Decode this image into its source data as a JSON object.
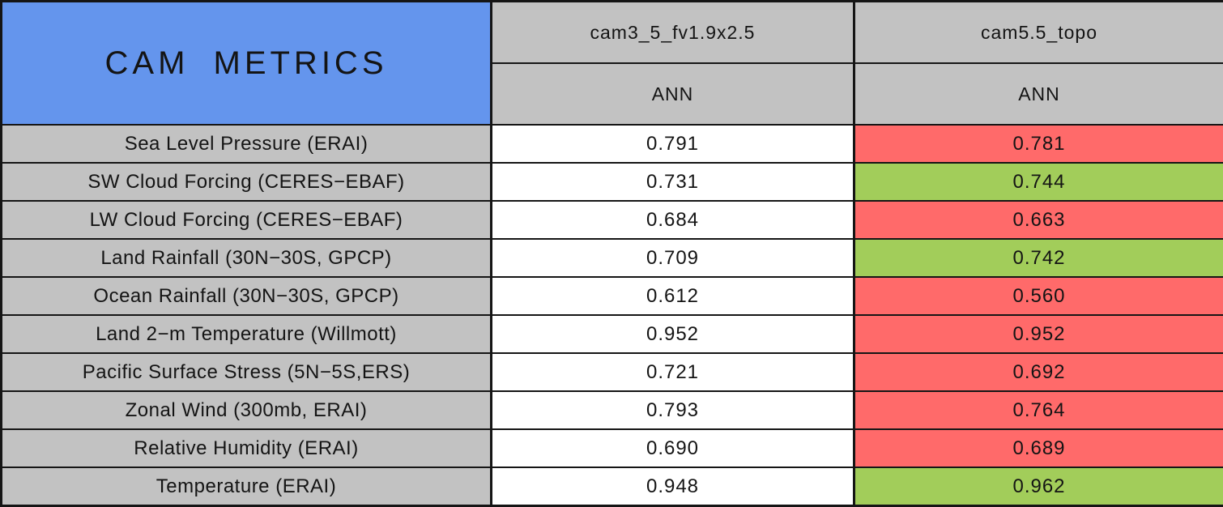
{
  "chart_data": {
    "type": "table",
    "title": "CAM METRICS",
    "column_groups": [
      {
        "model": "cam3_5_fv1.9x2.5",
        "subheader": "ANN"
      },
      {
        "model": "cam5.5_topo",
        "subheader": "ANN"
      }
    ],
    "rows": [
      {
        "metric": "Sea Level Pressure (ERAI)",
        "values": [
          "0.791",
          "0.781"
        ],
        "value_colors": [
          "white",
          "red"
        ]
      },
      {
        "metric": "SW Cloud Forcing (CERES−EBAF)",
        "values": [
          "0.731",
          "0.744"
        ],
        "value_colors": [
          "white",
          "green"
        ]
      },
      {
        "metric": "LW Cloud Forcing (CERES−EBAF)",
        "values": [
          "0.684",
          "0.663"
        ],
        "value_colors": [
          "white",
          "red"
        ]
      },
      {
        "metric": "Land Rainfall (30N−30S, GPCP)",
        "values": [
          "0.709",
          "0.742"
        ],
        "value_colors": [
          "white",
          "green"
        ]
      },
      {
        "metric": "Ocean Rainfall (30N−30S, GPCP)",
        "values": [
          "0.612",
          "0.560"
        ],
        "value_colors": [
          "white",
          "red"
        ]
      },
      {
        "metric": "Land 2−m Temperature (Willmott)",
        "values": [
          "0.952",
          "0.952"
        ],
        "value_colors": [
          "white",
          "red"
        ]
      },
      {
        "metric": "Pacific Surface Stress (5N−5S,ERS)",
        "values": [
          "0.721",
          "0.692"
        ],
        "value_colors": [
          "white",
          "red"
        ]
      },
      {
        "metric": "Zonal Wind (300mb, ERAI)",
        "values": [
          "0.793",
          "0.764"
        ],
        "value_colors": [
          "white",
          "red"
        ]
      },
      {
        "metric": "Relative Humidity (ERAI)",
        "values": [
          "0.690",
          "0.689"
        ],
        "value_colors": [
          "white",
          "red"
        ]
      },
      {
        "metric": "Temperature (ERAI)",
        "values": [
          "0.948",
          "0.962"
        ],
        "value_colors": [
          "white",
          "green"
        ]
      }
    ]
  },
  "colors": {
    "title_bg": "#6495ED",
    "header_bg": "#C2C2C2",
    "metric_bg": "#C2C2C2",
    "white": "#FFFFFF",
    "red": "#FF6A6A",
    "green": "#A2CD5A"
  }
}
